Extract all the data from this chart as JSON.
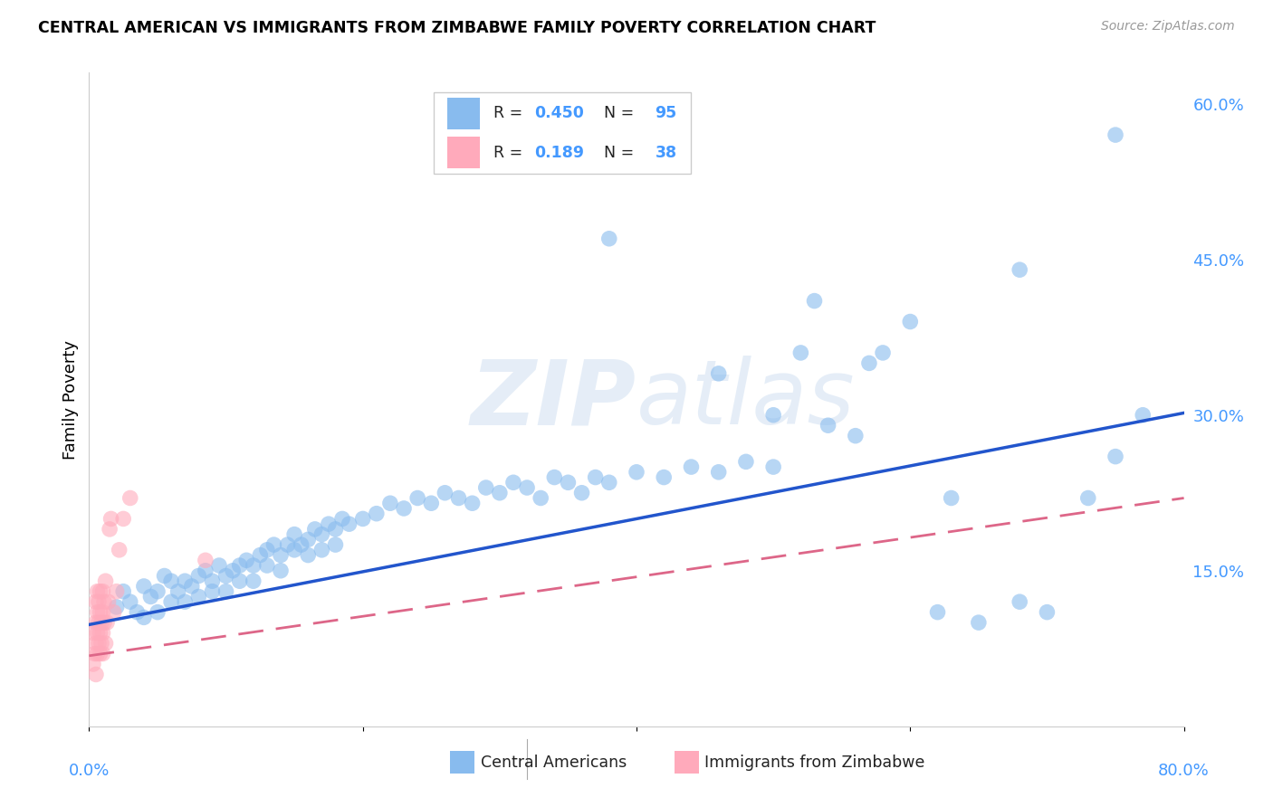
{
  "title": "CENTRAL AMERICAN VS IMMIGRANTS FROM ZIMBABWE FAMILY POVERTY CORRELATION CHART",
  "source": "Source: ZipAtlas.com",
  "ylabel": "Family Poverty",
  "xlim": [
    0.0,
    0.8
  ],
  "ylim": [
    0.0,
    0.63
  ],
  "yticks": [
    0.15,
    0.3,
    0.45,
    0.6
  ],
  "ytick_labels": [
    "15.0%",
    "30.0%",
    "45.0%",
    "60.0%"
  ],
  "xtick_left_label": "0.0%",
  "xtick_right_label": "80.0%",
  "grid_color": "#c8c8c8",
  "blue_color": "#88bbee",
  "pink_color": "#ffaabb",
  "blue_line_color": "#2255cc",
  "pink_line_color": "#dd6688",
  "blue_intercept": 0.098,
  "blue_slope": 0.255,
  "pink_intercept": 0.068,
  "pink_slope": 0.19,
  "blue_points_x": [
    0.02,
    0.025,
    0.03,
    0.035,
    0.04,
    0.04,
    0.045,
    0.05,
    0.05,
    0.055,
    0.06,
    0.06,
    0.065,
    0.07,
    0.07,
    0.075,
    0.08,
    0.08,
    0.085,
    0.09,
    0.09,
    0.095,
    0.1,
    0.1,
    0.105,
    0.11,
    0.11,
    0.115,
    0.12,
    0.12,
    0.125,
    0.13,
    0.13,
    0.135,
    0.14,
    0.14,
    0.145,
    0.15,
    0.15,
    0.155,
    0.16,
    0.16,
    0.165,
    0.17,
    0.17,
    0.175,
    0.18,
    0.18,
    0.185,
    0.19,
    0.2,
    0.21,
    0.22,
    0.23,
    0.24,
    0.25,
    0.26,
    0.27,
    0.28,
    0.29,
    0.3,
    0.31,
    0.32,
    0.33,
    0.34,
    0.35,
    0.36,
    0.37,
    0.38,
    0.4,
    0.42,
    0.44,
    0.46,
    0.48,
    0.5,
    0.52,
    0.54,
    0.56,
    0.58,
    0.6,
    0.62,
    0.65,
    0.68,
    0.7,
    0.73,
    0.75,
    0.77,
    0.38,
    0.46,
    0.5,
    0.53,
    0.57,
    0.63,
    0.68,
    0.75
  ],
  "blue_points_y": [
    0.115,
    0.13,
    0.12,
    0.11,
    0.135,
    0.105,
    0.125,
    0.13,
    0.11,
    0.145,
    0.12,
    0.14,
    0.13,
    0.14,
    0.12,
    0.135,
    0.145,
    0.125,
    0.15,
    0.14,
    0.13,
    0.155,
    0.145,
    0.13,
    0.15,
    0.155,
    0.14,
    0.16,
    0.155,
    0.14,
    0.165,
    0.17,
    0.155,
    0.175,
    0.165,
    0.15,
    0.175,
    0.17,
    0.185,
    0.175,
    0.18,
    0.165,
    0.19,
    0.185,
    0.17,
    0.195,
    0.19,
    0.175,
    0.2,
    0.195,
    0.2,
    0.205,
    0.215,
    0.21,
    0.22,
    0.215,
    0.225,
    0.22,
    0.215,
    0.23,
    0.225,
    0.235,
    0.23,
    0.22,
    0.24,
    0.235,
    0.225,
    0.24,
    0.235,
    0.245,
    0.24,
    0.25,
    0.245,
    0.255,
    0.25,
    0.36,
    0.29,
    0.28,
    0.36,
    0.39,
    0.11,
    0.1,
    0.12,
    0.11,
    0.22,
    0.26,
    0.3,
    0.47,
    0.34,
    0.3,
    0.41,
    0.35,
    0.22,
    0.44,
    0.57
  ],
  "pink_points_x": [
    0.003,
    0.003,
    0.004,
    0.005,
    0.005,
    0.005,
    0.005,
    0.006,
    0.006,
    0.006,
    0.006,
    0.007,
    0.007,
    0.007,
    0.008,
    0.008,
    0.008,
    0.008,
    0.009,
    0.009,
    0.01,
    0.01,
    0.01,
    0.01,
    0.011,
    0.011,
    0.012,
    0.012,
    0.013,
    0.014,
    0.015,
    0.016,
    0.018,
    0.02,
    0.022,
    0.025,
    0.03,
    0.085
  ],
  "pink_points_y": [
    0.06,
    0.09,
    0.07,
    0.1,
    0.08,
    0.12,
    0.05,
    0.09,
    0.11,
    0.07,
    0.13,
    0.08,
    0.1,
    0.12,
    0.09,
    0.11,
    0.13,
    0.07,
    0.1,
    0.08,
    0.09,
    0.11,
    0.13,
    0.07,
    0.1,
    0.12,
    0.08,
    0.14,
    0.1,
    0.12,
    0.19,
    0.2,
    0.11,
    0.13,
    0.17,
    0.2,
    0.22,
    0.16
  ]
}
